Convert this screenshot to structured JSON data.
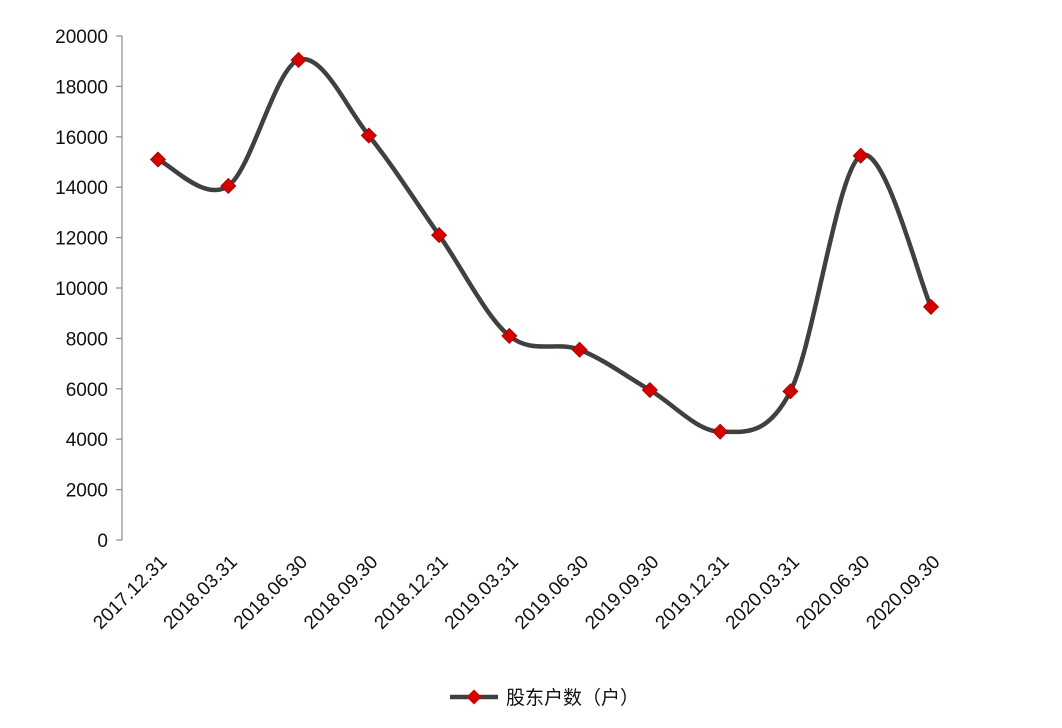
{
  "chart_data": {
    "type": "line",
    "smooth": true,
    "categories": [
      "2017.12.31",
      "2018.03.31",
      "2018.06.30",
      "2018.09.30",
      "2018.12.31",
      "2019.03.31",
      "2019.06.30",
      "2019.09.30",
      "2019.12.31",
      "2020.03.31",
      "2020.06.30",
      "2020.09.30"
    ],
    "series": [
      {
        "name": "股东户数（户）",
        "values": [
          15100,
          14050,
          19050,
          16050,
          12100,
          8100,
          7550,
          5950,
          4300,
          5900,
          15250,
          9250
        ],
        "line_color": "#404040",
        "marker": "diamond",
        "marker_color": "#d40000"
      }
    ],
    "ylim": [
      0,
      20000
    ],
    "yticks": [
      0,
      2000,
      4000,
      6000,
      8000,
      10000,
      12000,
      14000,
      16000,
      18000,
      20000
    ],
    "grid": false,
    "legend_position": "bottom"
  }
}
